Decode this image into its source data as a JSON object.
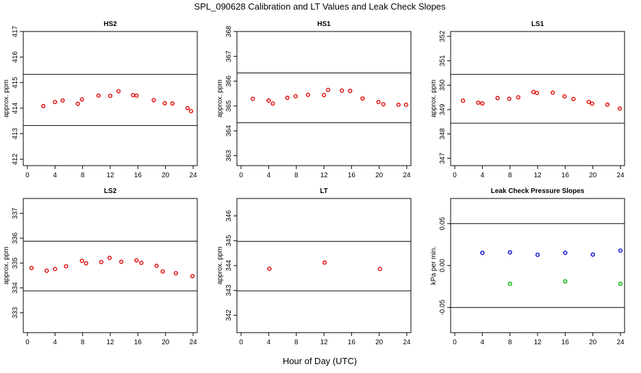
{
  "title": "SPL_090628  Calibration and LT Values and Leak Check Slopes",
  "xlabel": "Hour of Day (UTC)",
  "colors": {
    "points": "#e00000",
    "series_blue": "#0000d0",
    "series_green": "#00b000",
    "reference": "#000000"
  },
  "chart_data": [
    {
      "type": "scatter",
      "title": "HS2",
      "ylabel": "approx. ppm",
      "xlim": [
        0,
        24
      ],
      "xticks": [
        0,
        4,
        8,
        12,
        16,
        20,
        24
      ],
      "ylim": [
        411.75,
        417.0
      ],
      "yticks": [
        412,
        413,
        414,
        415,
        416,
        417
      ],
      "hlines": [
        413.32,
        415.32
      ],
      "grid": false,
      "series": [
        {
          "name": "HS2",
          "color": "#e00000",
          "x": [
            2.3,
            4.0,
            5.1,
            7.3,
            7.9,
            10.3,
            12.0,
            13.2,
            15.3,
            15.8,
            18.3,
            19.9,
            21.0,
            23.2,
            23.7
          ],
          "y": [
            414.08,
            414.24,
            414.3,
            414.17,
            414.34,
            414.49,
            414.48,
            414.66,
            414.51,
            414.49,
            414.31,
            414.19,
            414.18,
            414.0,
            413.88
          ]
        }
      ]
    },
    {
      "type": "scatter",
      "title": "HS1",
      "ylabel": "approx. ppm",
      "xlim": [
        0,
        24
      ],
      "xticks": [
        0,
        4,
        8,
        12,
        16,
        20,
        24
      ],
      "ylim": [
        362.6,
        368.0
      ],
      "yticks": [
        363,
        364,
        365,
        366,
        367,
        368
      ],
      "hlines": [
        364.33,
        366.33
      ],
      "grid": false,
      "series": [
        {
          "name": "HS1",
          "color": "#e00000",
          "x": [
            1.7,
            4.0,
            4.6,
            6.7,
            7.9,
            9.7,
            12.0,
            12.6,
            14.6,
            15.8,
            17.6,
            19.9,
            20.6,
            22.8,
            23.9
          ],
          "y": [
            365.29,
            365.22,
            365.1,
            365.33,
            365.39,
            365.45,
            365.44,
            365.65,
            365.62,
            365.61,
            365.3,
            365.16,
            365.07,
            365.05,
            365.05
          ]
        }
      ]
    },
    {
      "type": "scatter",
      "title": "LS1",
      "ylabel": "approx. ppm",
      "xlim": [
        0,
        24
      ],
      "xticks": [
        0,
        4,
        8,
        12,
        16,
        20,
        24
      ],
      "ylim": [
        346.7,
        352.2
      ],
      "yticks": [
        347,
        348,
        349,
        350,
        351,
        352
      ],
      "hlines": [
        348.44,
        350.44
      ],
      "grid": false,
      "series": [
        {
          "name": "LS1",
          "color": "#e00000",
          "x": [
            1.2,
            3.4,
            4.0,
            6.2,
            7.9,
            9.2,
            11.4,
            11.9,
            14.2,
            15.9,
            17.2,
            19.4,
            19.9,
            22.1,
            23.9
          ],
          "y": [
            349.36,
            349.28,
            349.25,
            349.47,
            349.44,
            349.5,
            349.72,
            349.68,
            349.69,
            349.54,
            349.43,
            349.31,
            349.24,
            349.2,
            349.04
          ]
        }
      ]
    },
    {
      "type": "scatter",
      "title": "LS2",
      "ylabel": "approx. ppm",
      "xlim": [
        0,
        24
      ],
      "xticks": [
        0,
        4,
        8,
        12,
        16,
        20,
        24
      ],
      "ylim": [
        332.2,
        337.6
      ],
      "yticks": [
        333,
        334,
        335,
        336,
        337
      ],
      "hlines": [
        333.88,
        335.88
      ],
      "grid": false,
      "series": [
        {
          "name": "LS2",
          "color": "#e00000",
          "x": [
            0.6,
            2.8,
            4.0,
            5.6,
            7.9,
            8.5,
            10.7,
            11.9,
            13.6,
            15.8,
            16.5,
            18.7,
            19.6,
            21.5,
            23.9
          ],
          "y": [
            334.8,
            334.69,
            334.76,
            334.87,
            335.09,
            334.99,
            335.04,
            335.21,
            335.05,
            335.11,
            335.01,
            334.89,
            334.66,
            334.59,
            334.47
          ]
        }
      ]
    },
    {
      "type": "scatter",
      "title": "LT",
      "ylabel": "approx. ppm",
      "xlim": [
        0,
        24
      ],
      "xticks": [
        0,
        4,
        8,
        12,
        16,
        20,
        24
      ],
      "ylim": [
        341.3,
        346.7
      ],
      "yticks": [
        342,
        343,
        344,
        345,
        346
      ],
      "hlines": [
        342.98,
        344.97
      ],
      "grid": false,
      "series": [
        {
          "name": "LT",
          "color": "#e00000",
          "x": [
            4.1,
            12.1,
            20.1
          ],
          "y": [
            343.87,
            344.12,
            343.86
          ]
        }
      ]
    },
    {
      "type": "scatter",
      "title": "Leak Check Pressure Slopes",
      "ylabel": "kPa per min.",
      "xlim": [
        0,
        24
      ],
      "xticks": [
        0,
        4,
        8,
        12,
        16,
        20,
        24
      ],
      "ylim": [
        -0.08,
        0.08
      ],
      "yticks": [
        -0.05,
        0.0,
        0.05
      ],
      "ytick_labels": [
        "-0.05",
        "0.00",
        "0.05"
      ],
      "hlines": [
        -0.05,
        0.05
      ],
      "grid": false,
      "series": [
        {
          "name": "blue",
          "color": "#0000d0",
          "x": [
            4.0,
            8.0,
            12.0,
            16.0,
            20.0,
            24.0
          ],
          "y": [
            0.0152,
            0.0157,
            0.0128,
            0.0152,
            0.0131,
            0.0178
          ]
        },
        {
          "name": "green",
          "color": "#00b000",
          "x": [
            8.0,
            16.0,
            24.0
          ],
          "y": [
            -0.0217,
            -0.0189,
            -0.0217
          ]
        }
      ]
    }
  ]
}
